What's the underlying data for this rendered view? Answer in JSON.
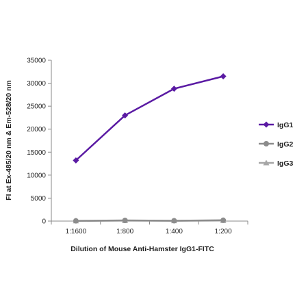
{
  "chart_data": {
    "type": "line",
    "title": "",
    "xlabel": "Dilution of Mouse Anti-Hamster IgG1-FITC",
    "ylabel": "FI at Ex-485/20 nm & Em-528/20 nm",
    "categories": [
      "1:1600",
      "1:800",
      "1:400",
      "1:200"
    ],
    "ylim": [
      0,
      35000
    ],
    "yticks": [
      0,
      5000,
      10000,
      15000,
      20000,
      25000,
      30000,
      35000
    ],
    "grid": false,
    "legend_position": "right",
    "series": [
      {
        "name": "IgG1",
        "values": [
          13200,
          23000,
          28800,
          31500
        ],
        "color": "#5a1aa3",
        "marker": "diamond"
      },
      {
        "name": "IgG2",
        "values": [
          50,
          150,
          80,
          180
        ],
        "color": "#8c8c8c",
        "marker": "circle"
      },
      {
        "name": "IgG3",
        "values": [
          30,
          100,
          60,
          120
        ],
        "color": "#a6a6a6",
        "marker": "triangle"
      }
    ]
  }
}
